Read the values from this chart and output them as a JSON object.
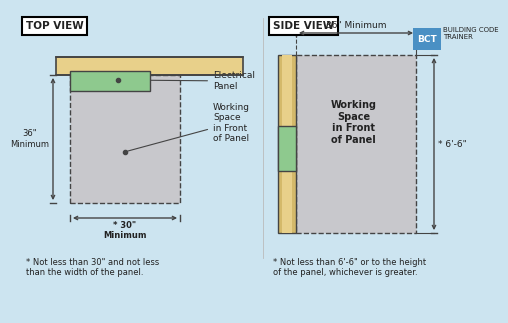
{
  "bg_color": "#cce4f0",
  "wall_color": "#d4b96a",
  "wall_inner_color": "#e8d08a",
  "panel_color": "#8ec98e",
  "working_space_color": "#c8c8cc",
  "text_color": "#222222",
  "line_color": "#444444",
  "top_view": {
    "title": "TOP VIEW",
    "footnote": "* Not less than 30\" and not less\nthan the width of the panel.",
    "dim_36": "36\"\nMinimum",
    "dim_30": "* 30\"\nMinimum",
    "elec_label": "Electrical\nPanel",
    "work_label": "Working\nSpace\nin Front\nof Panel"
  },
  "side_view": {
    "title": "SIDE VIEW",
    "footnote": "* Not less than 6'-6\" or to the height\nof the panel, whichever is greater.",
    "dim_36": "36\" Minimum",
    "dim_66": "* 6'-6\"",
    "work_label": "Working\nSpace\nin Front\nof Panel"
  },
  "bct_color": "#4a90c4",
  "bct_text": "BCT",
  "bct_label": "BUILDING CODE\nTRAINER"
}
